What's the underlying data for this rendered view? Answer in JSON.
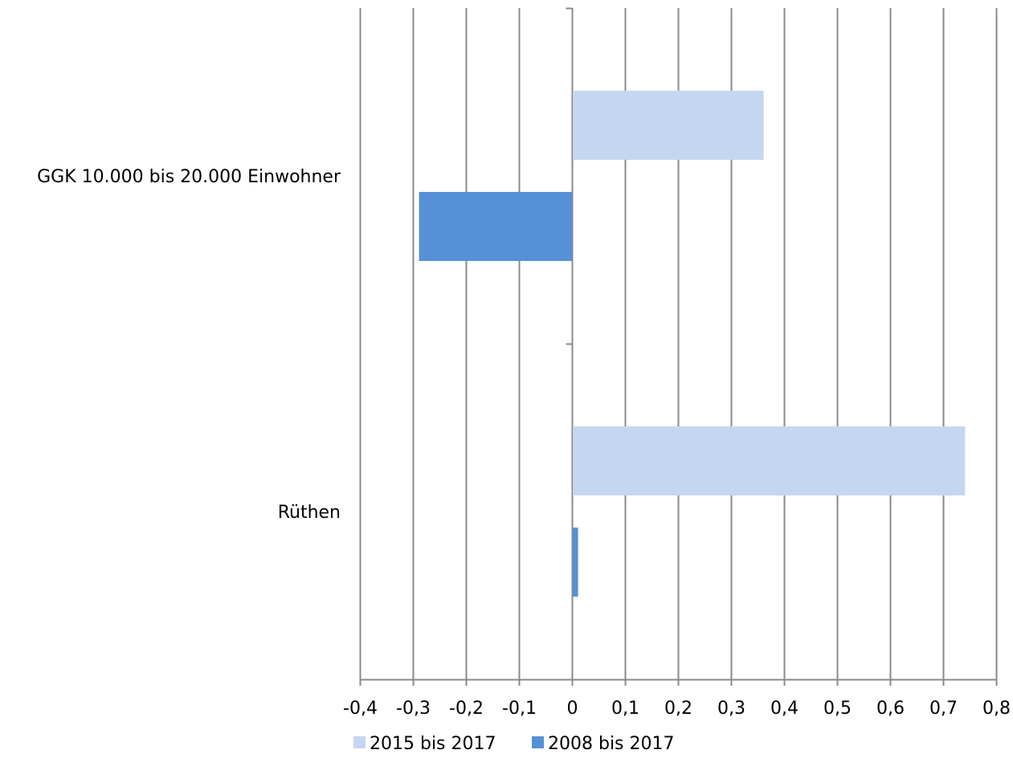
{
  "chart_data": {
    "type": "bar",
    "orientation": "horizontal",
    "categories": [
      "GGK 10.000 bis 20.000 Einwohner",
      "Rüthen"
    ],
    "series": [
      {
        "name": "2015 bis 2017",
        "values": [
          0.36,
          0.74
        ],
        "color": "#c5d7f0"
      },
      {
        "name": "2008 bis 2017",
        "values": [
          -0.29,
          0.01
        ],
        "color": "#5690d6"
      }
    ],
    "x_ticks": [
      "-0,4",
      "-0,3",
      "-0,2",
      "-0,1",
      "0",
      "0,1",
      "0,2",
      "0,3",
      "0,4",
      "0,5",
      "0,6",
      "0,7",
      "0,8"
    ],
    "xlim": [
      -0.4,
      0.8
    ],
    "grid": "vertical",
    "legend_position": "bottom",
    "title": "",
    "xlabel": "",
    "ylabel": ""
  }
}
